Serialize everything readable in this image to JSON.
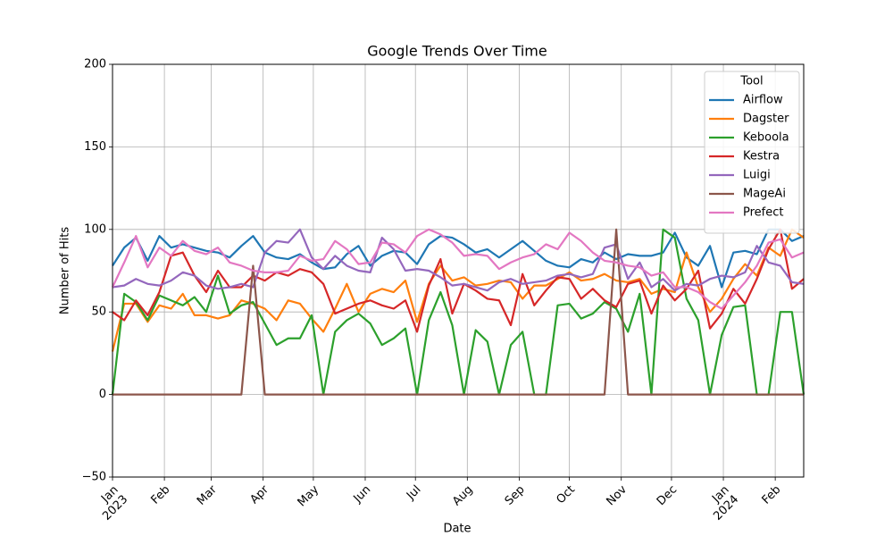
{
  "chart_data": {
    "type": "line",
    "title": "Google Trends Over Time",
    "xlabel": "Date",
    "ylabel": "Number of Hits",
    "x": [
      0,
      1,
      2,
      3,
      4,
      5,
      6,
      7,
      8,
      9,
      10,
      11,
      12,
      13,
      14,
      15,
      16,
      17,
      18,
      19,
      20,
      21,
      22,
      23,
      24,
      25,
      26,
      27,
      28,
      29,
      30,
      31,
      32,
      33,
      34,
      35,
      36,
      37,
      38,
      39,
      40,
      41,
      42,
      43,
      44,
      45,
      46,
      47,
      48,
      49,
      50,
      51,
      52,
      53,
      54,
      55,
      56,
      57,
      58,
      59
    ],
    "xlim": [
      0,
      59
    ],
    "xticks": [
      {
        "value": 0,
        "label": "Jan\n2023"
      },
      {
        "value": 4.4286,
        "label": "Feb"
      },
      {
        "value": 8.4286,
        "label": "Mar"
      },
      {
        "value": 12.857,
        "label": "Apr"
      },
      {
        "value": 17.143,
        "label": "May"
      },
      {
        "value": 21.571,
        "label": "Jun"
      },
      {
        "value": 25.857,
        "label": "Jul"
      },
      {
        "value": 30.286,
        "label": "Aug"
      },
      {
        "value": 34.714,
        "label": "Sep"
      },
      {
        "value": 39,
        "label": "Oct"
      },
      {
        "value": 43.429,
        "label": "Nov"
      },
      {
        "value": 47.714,
        "label": "Dec"
      },
      {
        "value": 52.143,
        "label": "Jan\n2024"
      },
      {
        "value": 56.571,
        "label": "Feb"
      }
    ],
    "ylim": [
      -50,
      200
    ],
    "yticks": [
      {
        "value": -50,
        "label": "−50"
      },
      0,
      50,
      100,
      150,
      200
    ],
    "grid": true,
    "legend_title": "Tool",
    "legend_position": "upper-right",
    "series": [
      {
        "name": "Airflow",
        "color": "#1f77b4",
        "values": [
          78,
          89,
          95,
          81,
          96,
          89,
          91,
          89,
          87,
          86,
          83,
          90,
          96,
          86,
          83,
          82,
          85,
          80,
          76,
          77,
          85,
          90,
          78,
          84,
          87,
          86,
          79,
          91,
          96,
          95,
          91,
          86,
          88,
          83,
          88,
          93,
          87,
          81,
          78,
          77,
          82,
          80,
          86,
          82,
          85,
          84,
          84,
          86,
          98,
          83,
          78,
          90,
          65,
          86,
          87,
          85,
          100,
          100,
          93,
          96
        ]
      },
      {
        "name": "Dagster",
        "color": "#ff7f0e",
        "values": [
          26,
          55,
          55,
          44,
          54,
          52,
          61,
          48,
          48,
          46,
          48,
          57,
          55,
          52,
          45,
          57,
          55,
          46,
          38,
          52,
          67,
          50,
          61,
          64,
          62,
          69,
          44,
          67,
          78,
          69,
          71,
          66,
          67,
          69,
          68,
          58,
          66,
          66,
          70,
          74,
          69,
          70,
          73,
          69,
          68,
          70,
          61,
          64,
          62,
          86,
          65,
          50,
          58,
          70,
          79,
          72,
          89,
          84,
          100,
          95
        ]
      },
      {
        "name": "Keboola",
        "color": "#2ca02c",
        "values": [
          0,
          61,
          56,
          45,
          60,
          57,
          54,
          59,
          50,
          72,
          49,
          54,
          56,
          43,
          30,
          34,
          34,
          48,
          0,
          38,
          45,
          49,
          43,
          30,
          34,
          40,
          0,
          45,
          62,
          42,
          0,
          39,
          32,
          0,
          30,
          38,
          0,
          0,
          54,
          55,
          46,
          49,
          56,
          52,
          38,
          61,
          0,
          100,
          95,
          58,
          45,
          0,
          36,
          53,
          54,
          0,
          0,
          50,
          50,
          0
        ]
      },
      {
        "name": "Kestra",
        "color": "#d62728",
        "values": [
          50,
          45,
          57,
          48,
          62,
          84,
          86,
          72,
          62,
          75,
          65,
          65,
          72,
          69,
          74,
          72,
          76,
          74,
          67,
          49,
          52,
          55,
          57,
          54,
          52,
          57,
          38,
          66,
          82,
          49,
          67,
          63,
          58,
          57,
          42,
          73,
          54,
          63,
          71,
          70,
          58,
          64,
          57,
          53,
          67,
          69,
          49,
          66,
          57,
          64,
          75,
          40,
          49,
          64,
          55,
          70,
          88,
          100,
          64,
          70
        ]
      },
      {
        "name": "Luigi",
        "color": "#9467bd",
        "values": [
          65,
          66,
          70,
          67,
          66,
          69,
          74,
          72,
          66,
          64,
          65,
          67,
          65,
          86,
          93,
          92,
          100,
          83,
          76,
          84,
          78,
          75,
          74,
          95,
          88,
          75,
          76,
          75,
          71,
          66,
          67,
          65,
          63,
          68,
          70,
          67,
          68,
          69,
          72,
          73,
          71,
          73,
          89,
          91,
          70,
          80,
          65,
          70,
          63,
          67,
          66,
          70,
          72,
          71,
          74,
          90,
          80,
          78,
          68,
          67
        ]
      },
      {
        "name": "MageAi",
        "color": "#8c564b",
        "values": [
          0,
          0,
          0,
          0,
          0,
          0,
          0,
          0,
          0,
          0,
          0,
          0,
          78,
          0,
          0,
          0,
          0,
          0,
          0,
          0,
          0,
          0,
          0,
          0,
          0,
          0,
          0,
          0,
          0,
          0,
          0,
          0,
          0,
          0,
          0,
          0,
          0,
          0,
          0,
          0,
          0,
          0,
          0,
          100,
          0,
          0,
          0,
          0,
          0,
          0,
          0,
          0,
          0,
          0,
          0,
          0,
          0,
          0,
          0,
          0
        ]
      },
      {
        "name": "Prefect",
        "color": "#e377c2",
        "values": [
          65,
          80,
          96,
          77,
          89,
          84,
          93,
          87,
          85,
          89,
          80,
          78,
          75,
          74,
          74,
          75,
          84,
          81,
          82,
          93,
          88,
          79,
          80,
          92,
          91,
          86,
          96,
          100,
          97,
          92,
          84,
          85,
          84,
          76,
          80,
          83,
          85,
          91,
          88,
          98,
          93,
          86,
          81,
          80,
          78,
          77,
          72,
          74,
          65,
          65,
          62,
          56,
          52,
          60,
          68,
          78,
          92,
          94,
          83,
          86
        ]
      }
    ]
  }
}
